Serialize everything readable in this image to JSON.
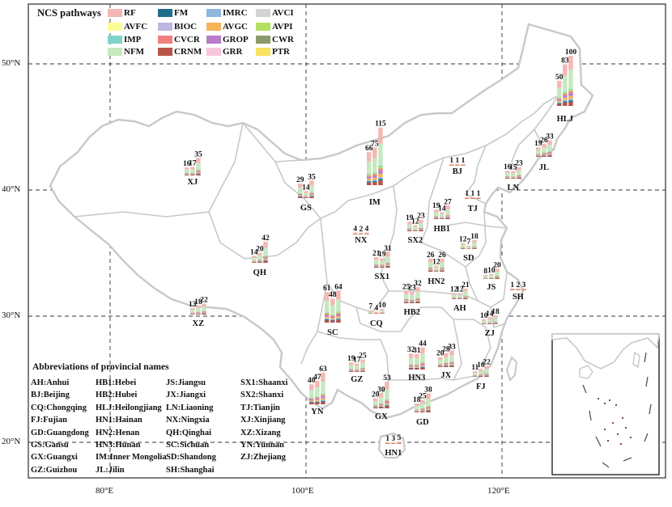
{
  "legend": {
    "title": "NCS pathways",
    "items": [
      {
        "code": "RF",
        "color": "#f4b7b4"
      },
      {
        "code": "AVFC",
        "color": "#fdfd96"
      },
      {
        "code": "IMP",
        "color": "#7fd3c8"
      },
      {
        "code": "NFM",
        "color": "#c6e9c0"
      },
      {
        "code": "FM",
        "color": "#1f6e8c"
      },
      {
        "code": "BIOC",
        "color": "#bcb8e0"
      },
      {
        "code": "CVCR",
        "color": "#f08080"
      },
      {
        "code": "CRNM",
        "color": "#b8534a"
      },
      {
        "code": "IMRC",
        "color": "#8fb6de"
      },
      {
        "code": "AVGC",
        "color": "#f6b35a"
      },
      {
        "code": "GROP",
        "color": "#b77dc9"
      },
      {
        "code": "GRR",
        "color": "#f8c6dc"
      },
      {
        "code": "AVCI",
        "color": "#d3d3d3"
      },
      {
        "code": "AVPI",
        "color": "#b4e061"
      },
      {
        "code": "CWR",
        "color": "#8c9a6b"
      },
      {
        "code": "PTR",
        "color": "#f7e35e"
      }
    ]
  },
  "axes": {
    "lon_labels": [
      "80°E",
      "100°E",
      "120°E"
    ],
    "lat_labels": [
      "50°N",
      "40°N",
      "30°N",
      "20°N"
    ]
  },
  "provinces": [
    {
      "abbr": "HLJ",
      "values": [
        50,
        83,
        100
      ]
    },
    {
      "abbr": "JL",
      "values": [
        19,
        26,
        33
      ]
    },
    {
      "abbr": "LN",
      "values": [
        16,
        15,
        23
      ]
    },
    {
      "abbr": "IM",
      "values": [
        66,
        75,
        115
      ]
    },
    {
      "abbr": "BJ",
      "values": [
        1,
        1,
        1
      ]
    },
    {
      "abbr": "TJ",
      "values": [
        1,
        1,
        1
      ]
    },
    {
      "abbr": "HB1",
      "values": [
        19,
        14,
        27
      ]
    },
    {
      "abbr": "SX2",
      "values": [
        19,
        12,
        23
      ]
    },
    {
      "abbr": "SD",
      "values": [
        12,
        7,
        18
      ]
    },
    {
      "abbr": "NX",
      "values": [
        4,
        2,
        4
      ]
    },
    {
      "abbr": "GS",
      "values": [
        29,
        14,
        35
      ]
    },
    {
      "abbr": "XJ",
      "values": [
        16,
        17,
        35
      ]
    },
    {
      "abbr": "QH",
      "values": [
        14,
        20,
        42
      ]
    },
    {
      "abbr": "XZ",
      "values": [
        13,
        18,
        22
      ]
    },
    {
      "abbr": "SX1",
      "values": [
        21,
        19,
        31
      ]
    },
    {
      "abbr": "HN2",
      "values": [
        26,
        12,
        26
      ]
    },
    {
      "abbr": "JS",
      "values": [
        8,
        10,
        20
      ]
    },
    {
      "abbr": "SH",
      "values": [
        1,
        2,
        3
      ]
    },
    {
      "abbr": "AH",
      "values": [
        12,
        12,
        21
      ]
    },
    {
      "abbr": "HB2",
      "values": [
        25,
        23,
        32
      ]
    },
    {
      "abbr": "SC",
      "values": [
        61,
        48,
        64
      ]
    },
    {
      "abbr": "CQ",
      "values": [
        7,
        4,
        10
      ]
    },
    {
      "abbr": "ZJ",
      "values": [
        10,
        14,
        18
      ]
    },
    {
      "abbr": "JX",
      "values": [
        20,
        28,
        33
      ]
    },
    {
      "abbr": "HN3",
      "values": [
        32,
        31,
        44
      ]
    },
    {
      "abbr": "GZ",
      "values": [
        19,
        17,
        25
      ]
    },
    {
      "abbr": "YN",
      "values": [
        40,
        47,
        63
      ]
    },
    {
      "abbr": "FJ",
      "values": [
        11,
        16,
        22
      ]
    },
    {
      "abbr": "GD",
      "values": [
        18,
        25,
        38
      ]
    },
    {
      "abbr": "GX",
      "values": [
        20,
        30,
        53
      ]
    },
    {
      "abbr": "HN1",
      "values": [
        1,
        3,
        5
      ]
    }
  ],
  "abbreviations": {
    "title": "Abbreviations of provincial names",
    "entries": [
      "AH:Anhui",
      "BJ:Beijing",
      "CQ:Chongqing",
      "FJ:Fujian",
      "GD:Guangdong",
      "GS:Gansu",
      "GX:Guangxi",
      "GZ:Guizhou",
      "HB1:Hebei",
      "HB2:Hubei",
      "HLJ:Heilongjiang",
      "HN1:Hainan",
      "HN2:Henan",
      "HN3:Hunan",
      "IM:Inner Mongolia",
      "JL:Jilin",
      "JS:Jiangsu",
      "JX:Jiangxi",
      "LN:Liaoning",
      "NX:Ningxia",
      "QH:Qinghai",
      "SC:Sichuan",
      "SD:Shandong",
      "SH:Shanghai",
      "SX1:Shaanxi",
      "SX2:Shanxi",
      "TJ:Tianjin",
      "XJ:Xinjiang",
      "XZ:Xizang",
      "YN:Yunnan",
      "ZJ:Zhejiang"
    ]
  }
}
